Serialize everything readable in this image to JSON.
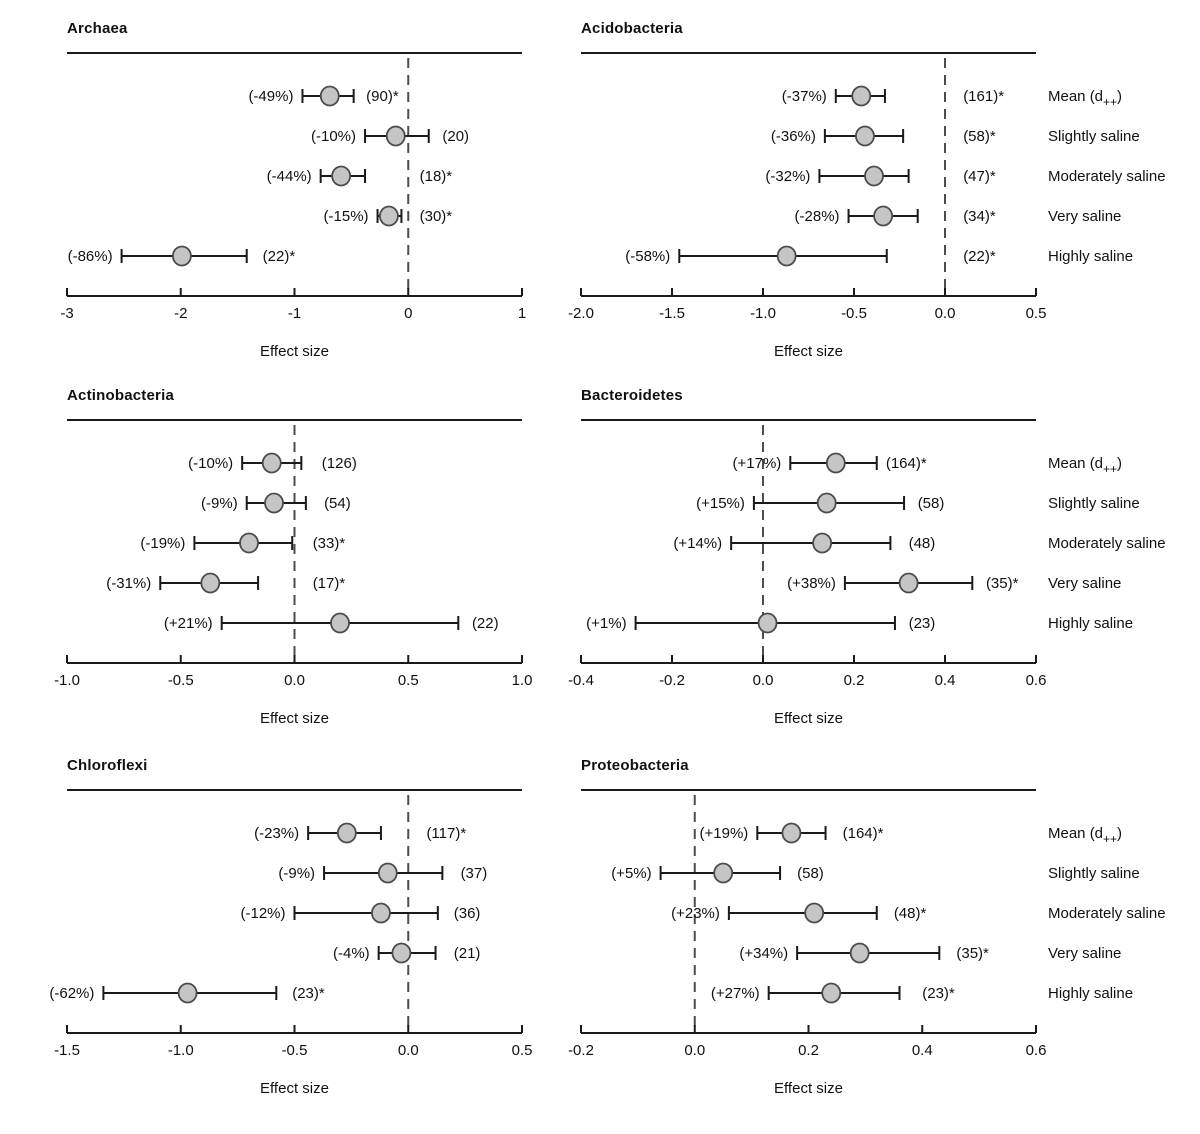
{
  "style": {
    "background": "#ffffff",
    "line_color": "#1a1a1a",
    "dashed_line_color": "#4d4d4d",
    "marker_fill": "#c5c5c5",
    "marker_stroke": "#4b4b4b",
    "text_color": "#111111"
  },
  "row_labels": [
    "Mean (d++)",
    "Slightly saline",
    "Moderately saline",
    "Very saline",
    "Highly saline"
  ],
  "chart_data": [
    {
      "type": "scatter",
      "subtype": "forest-plot",
      "title": "Archaea",
      "xlabel": "Effect size",
      "xlim": [
        -3,
        1
      ],
      "zero_reference_line": 0,
      "grid": false,
      "show_row_labels": false,
      "ticks": [
        {
          "v": -3,
          "label": "-3"
        },
        {
          "v": -2,
          "label": "-2"
        },
        {
          "v": -1,
          "label": "-1"
        },
        {
          "v": 0,
          "label": "0"
        },
        {
          "v": 1,
          "label": "1"
        }
      ],
      "rows": [
        {
          "category": "Mean (d++)",
          "pct": "(-49%)",
          "point": -0.69,
          "lo": -0.93,
          "hi": -0.48,
          "n": "(90)*",
          "n_at": -0.37
        },
        {
          "category": "Slightly saline",
          "pct": "(-10%)",
          "point": -0.11,
          "lo": -0.38,
          "hi": 0.18,
          "n": "(20)",
          "n_at": 0.3
        },
        {
          "category": "Moderately saline",
          "pct": "(-44%)",
          "point": -0.59,
          "lo": -0.77,
          "hi": -0.38,
          "n": "(18)*",
          "n_at": 0.1
        },
        {
          "category": "Very saline",
          "pct": "(-15%)",
          "point": -0.17,
          "lo": -0.27,
          "hi": -0.06,
          "n": "(30)*",
          "n_at": 0.1
        },
        {
          "category": "Highly saline",
          "pct": "(-86%)",
          "point": -1.99,
          "lo": -2.52,
          "hi": -1.42,
          "n": "(22)*",
          "n_at": -1.28
        }
      ]
    },
    {
      "type": "scatter",
      "subtype": "forest-plot",
      "title": "Acidobacteria",
      "xlabel": "Effect size",
      "xlim": [
        -2.0,
        0.5
      ],
      "zero_reference_line": 0,
      "grid": false,
      "show_row_labels": true,
      "ticks": [
        {
          "v": -2.0,
          "label": "-2.0"
        },
        {
          "v": -1.5,
          "label": "-1.5"
        },
        {
          "v": -1.0,
          "label": "-1.0"
        },
        {
          "v": -0.5,
          "label": "-0.5"
        },
        {
          "v": 0.0,
          "label": "0.0"
        },
        {
          "v": 0.5,
          "label": "0.5"
        }
      ],
      "rows": [
        {
          "category": "Mean (d++)",
          "pct": "(-37%)",
          "point": -0.46,
          "lo": -0.6,
          "hi": -0.33,
          "n": "(161)*",
          "n_at": 0.1
        },
        {
          "category": "Slightly saline",
          "pct": "(-36%)",
          "point": -0.44,
          "lo": -0.66,
          "hi": -0.23,
          "n": "(58)*",
          "n_at": 0.1
        },
        {
          "category": "Moderately saline",
          "pct": "(-32%)",
          "point": -0.39,
          "lo": -0.69,
          "hi": -0.2,
          "n": "(47)*",
          "n_at": 0.1
        },
        {
          "category": "Very saline",
          "pct": "(-28%)",
          "point": -0.34,
          "lo": -0.53,
          "hi": -0.15,
          "n": "(34)*",
          "n_at": 0.1
        },
        {
          "category": "Highly saline",
          "pct": "(-58%)",
          "point": -0.87,
          "lo": -1.46,
          "hi": -0.32,
          "n": "(22)*",
          "n_at": 0.1
        }
      ]
    },
    {
      "type": "scatter",
      "subtype": "forest-plot",
      "title": "Actinobacteria",
      "xlabel": "Effect size",
      "xlim": [
        -1.0,
        1.0
      ],
      "zero_reference_line": 0,
      "grid": false,
      "show_row_labels": false,
      "ticks": [
        {
          "v": -1.0,
          "label": "-1.0"
        },
        {
          "v": -0.5,
          "label": "-0.5"
        },
        {
          "v": 0.0,
          "label": "0.0"
        },
        {
          "v": 0.5,
          "label": "0.5"
        },
        {
          "v": 1.0,
          "label": "1.0"
        }
      ],
      "rows": [
        {
          "category": "Mean (d++)",
          "pct": "(-10%)",
          "point": -0.1,
          "lo": -0.23,
          "hi": 0.03,
          "n": "(126)",
          "n_at": 0.12
        },
        {
          "category": "Slightly saline",
          "pct": "(-9%)",
          "point": -0.09,
          "lo": -0.21,
          "hi": 0.05,
          "n": "(54)",
          "n_at": 0.13
        },
        {
          "category": "Moderately saline",
          "pct": "(-19%)",
          "point": -0.2,
          "lo": -0.44,
          "hi": -0.01,
          "n": "(33)*",
          "n_at": 0.08
        },
        {
          "category": "Very saline",
          "pct": "(-31%)",
          "point": -0.37,
          "lo": -0.59,
          "hi": -0.16,
          "n": "(17)*",
          "n_at": 0.08
        },
        {
          "category": "Highly saline",
          "pct": "(+21%)",
          "point": 0.2,
          "lo": -0.32,
          "hi": 0.72,
          "n": "(22)",
          "n_at": 0.78
        }
      ]
    },
    {
      "type": "scatter",
      "subtype": "forest-plot",
      "title": "Bacteroidetes",
      "xlabel": "Effect size",
      "xlim": [
        -0.4,
        0.6
      ],
      "zero_reference_line": 0,
      "grid": false,
      "show_row_labels": true,
      "ticks": [
        {
          "v": -0.4,
          "label": "-0.4"
        },
        {
          "v": -0.2,
          "label": "-0.2"
        },
        {
          "v": 0.0,
          "label": "0.0"
        },
        {
          "v": 0.2,
          "label": "0.2"
        },
        {
          "v": 0.4,
          "label": "0.4"
        },
        {
          "v": 0.6,
          "label": "0.6"
        }
      ],
      "rows": [
        {
          "category": "Mean (d++)",
          "pct": "(+17%)",
          "point": 0.16,
          "lo": 0.06,
          "hi": 0.25,
          "n": "(164)*",
          "n_at": 0.27
        },
        {
          "category": "Slightly saline",
          "pct": "(+15%)",
          "point": 0.14,
          "lo": -0.02,
          "hi": 0.31,
          "n": "(58)",
          "n_at": 0.34
        },
        {
          "category": "Moderately saline",
          "pct": "(+14%)",
          "point": 0.13,
          "lo": -0.07,
          "hi": 0.28,
          "n": "(48)",
          "n_at": 0.32
        },
        {
          "category": "Very saline",
          "pct": "(+38%)",
          "point": 0.32,
          "lo": 0.18,
          "hi": 0.46,
          "n": "(35)*",
          "n_at": 0.49
        },
        {
          "category": "Highly saline",
          "pct": "(+1%)",
          "point": 0.01,
          "lo": -0.28,
          "hi": 0.29,
          "n": "(23)",
          "n_at": 0.32
        }
      ]
    },
    {
      "type": "scatter",
      "subtype": "forest-plot",
      "title": "Chloroflexi",
      "xlabel": "Effect size",
      "xlim": [
        -1.5,
        0.5
      ],
      "zero_reference_line": 0,
      "grid": false,
      "show_row_labels": false,
      "ticks": [
        {
          "v": -1.5,
          "label": "-1.5"
        },
        {
          "v": -1.0,
          "label": "-1.0"
        },
        {
          "v": -0.5,
          "label": "-0.5"
        },
        {
          "v": 0.0,
          "label": "0.0"
        },
        {
          "v": 0.5,
          "label": "0.5"
        }
      ],
      "rows": [
        {
          "category": "Mean (d++)",
          "pct": "(-23%)",
          "point": -0.27,
          "lo": -0.44,
          "hi": -0.12,
          "n": "(117)*",
          "n_at": 0.08
        },
        {
          "category": "Slightly saline",
          "pct": "(-9%)",
          "point": -0.09,
          "lo": -0.37,
          "hi": 0.15,
          "n": "(37)",
          "n_at": 0.23
        },
        {
          "category": "Moderately saline",
          "pct": "(-12%)",
          "point": -0.12,
          "lo": -0.5,
          "hi": 0.13,
          "n": "(36)",
          "n_at": 0.2
        },
        {
          "category": "Very saline",
          "pct": "(-4%)",
          "point": -0.03,
          "lo": -0.13,
          "hi": 0.12,
          "n": "(21)",
          "n_at": 0.2
        },
        {
          "category": "Highly saline",
          "pct": "(-62%)",
          "point": -0.97,
          "lo": -1.34,
          "hi": -0.58,
          "n": "(23)*",
          "n_at": -0.51
        }
      ]
    },
    {
      "type": "scatter",
      "subtype": "forest-plot",
      "title": "Proteobacteria",
      "xlabel": "Effect size",
      "xlim": [
        -0.2,
        0.6
      ],
      "zero_reference_line": 0,
      "grid": false,
      "show_row_labels": true,
      "ticks": [
        {
          "v": -0.2,
          "label": "-0.2"
        },
        {
          "v": 0.0,
          "label": "0.0"
        },
        {
          "v": 0.2,
          "label": "0.2"
        },
        {
          "v": 0.4,
          "label": "0.4"
        },
        {
          "v": 0.6,
          "label": "0.6"
        }
      ],
      "rows": [
        {
          "category": "Mean (d++)",
          "pct": "(+19%)",
          "point": 0.17,
          "lo": 0.11,
          "hi": 0.23,
          "n": "(164)*",
          "n_at": 0.26
        },
        {
          "category": "Slightly saline",
          "pct": "(+5%)",
          "point": 0.05,
          "lo": -0.06,
          "hi": 0.15,
          "n": "(58)",
          "n_at": 0.18
        },
        {
          "category": "Moderately saline",
          "pct": "(+23%)",
          "point": 0.21,
          "lo": 0.06,
          "hi": 0.32,
          "n": "(48)*",
          "n_at": 0.35
        },
        {
          "category": "Very saline",
          "pct": "(+34%)",
          "point": 0.29,
          "lo": 0.18,
          "hi": 0.43,
          "n": "(35)*",
          "n_at": 0.46
        },
        {
          "category": "Highly saline",
          "pct": "(+27%)",
          "point": 0.24,
          "lo": 0.13,
          "hi": 0.36,
          "n": "(23)*",
          "n_at": 0.4
        }
      ]
    }
  ]
}
